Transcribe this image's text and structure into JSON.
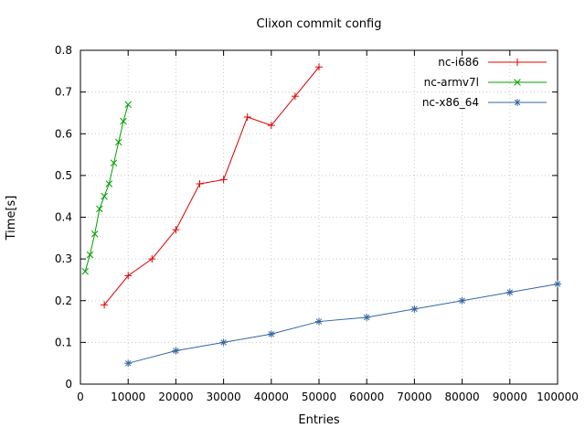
{
  "chart_data": {
    "type": "line",
    "title": "Clixon commit config",
    "xlabel": "Entries",
    "ylabel": "Time[s]",
    "xlim": [
      0,
      100000
    ],
    "ylim": [
      0,
      0.8
    ],
    "grid": true,
    "legend_position": "top-right-inside",
    "x_ticks": [
      0,
      10000,
      20000,
      30000,
      40000,
      50000,
      60000,
      70000,
      80000,
      90000,
      100000
    ],
    "x_tick_labels": [
      "0",
      "10000",
      "20000",
      "30000",
      "40000",
      "50000",
      "60000",
      "70000",
      "80000",
      "90000",
      "100000"
    ],
    "y_ticks": [
      0,
      0.1,
      0.2,
      0.3,
      0.4,
      0.5,
      0.6,
      0.7,
      0.8
    ],
    "y_tick_labels": [
      "0",
      "0.1",
      "0.2",
      "0.3",
      "0.4",
      "0.5",
      "0.6",
      "0.7",
      "0.8"
    ],
    "series": [
      {
        "name": "nc-i686",
        "color": "#e00000",
        "marker": "plus",
        "x": [
          5000,
          10000,
          15000,
          20000,
          25000,
          30000,
          35000,
          40000,
          45000,
          50000
        ],
        "y": [
          0.19,
          0.26,
          0.3,
          0.37,
          0.48,
          0.49,
          0.64,
          0.62,
          0.69,
          0.76
        ]
      },
      {
        "name": "nc-armv7l",
        "color": "#00a000",
        "marker": "x",
        "x": [
          1000,
          2000,
          3000,
          4000,
          5000,
          6000,
          7000,
          8000,
          9000,
          10000
        ],
        "y": [
          0.27,
          0.31,
          0.36,
          0.42,
          0.45,
          0.48,
          0.53,
          0.58,
          0.63,
          0.67
        ]
      },
      {
        "name": "nc-x86_64",
        "color": "#3465a4",
        "marker": "asterisk",
        "x": [
          10000,
          20000,
          30000,
          40000,
          50000,
          60000,
          70000,
          80000,
          90000,
          100000
        ],
        "y": [
          0.05,
          0.08,
          0.1,
          0.12,
          0.15,
          0.16,
          0.18,
          0.2,
          0.22,
          0.24
        ]
      }
    ]
  }
}
